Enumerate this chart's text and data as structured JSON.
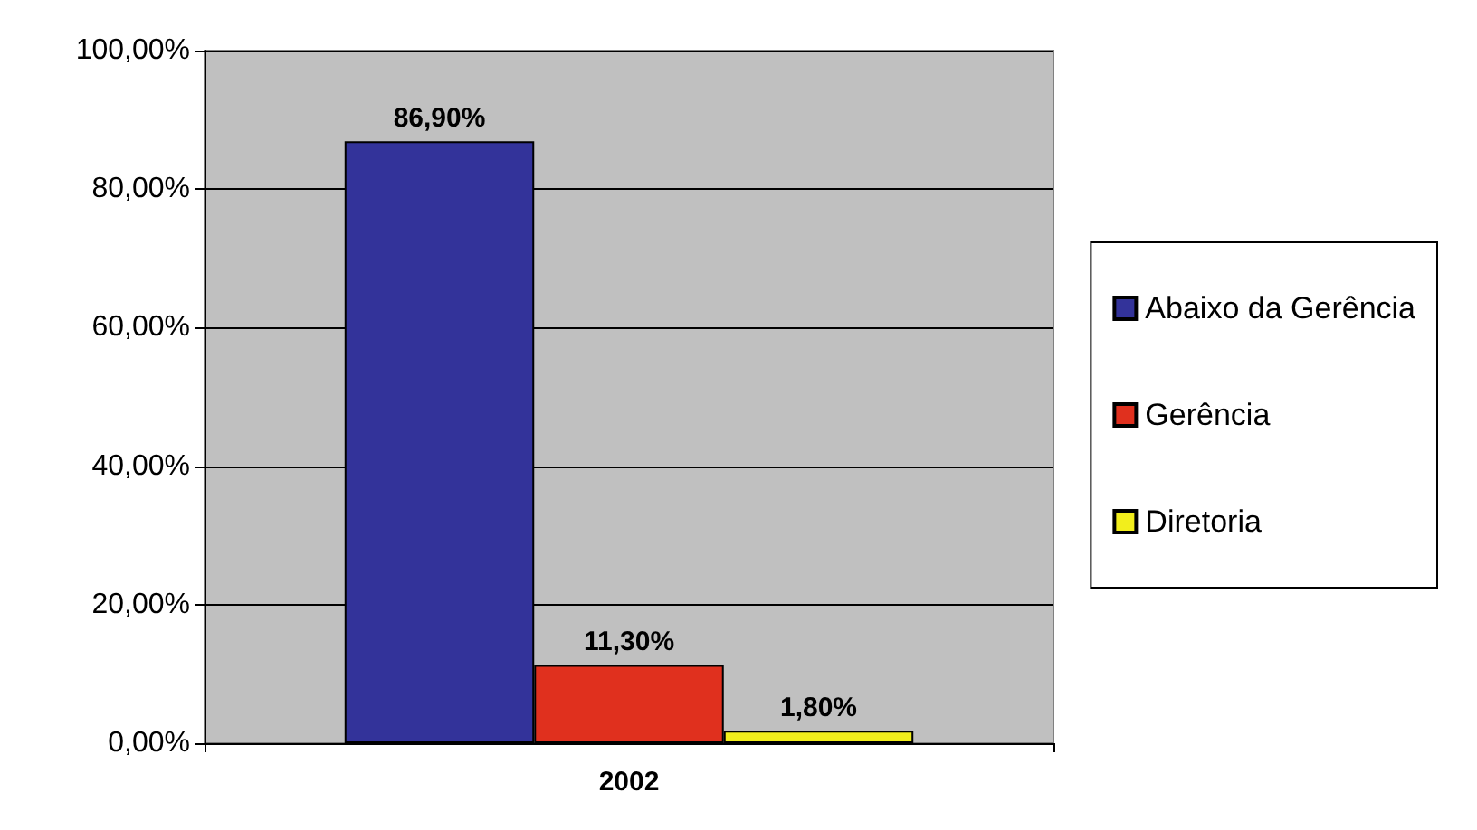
{
  "chart_data": {
    "type": "bar",
    "categories": [
      "2002"
    ],
    "series": [
      {
        "name": "Abaixo da Gerência",
        "color": "#33339a",
        "values": [
          86.9
        ],
        "value_labels": [
          "86,90%"
        ]
      },
      {
        "name": "Gerência",
        "color": "#e0301e",
        "values": [
          11.3
        ],
        "value_labels": [
          "11,30%"
        ]
      },
      {
        "name": "Diretoria",
        "color": "#f2ee1c",
        "values": [
          1.8
        ],
        "value_labels": [
          "1,80%"
        ]
      }
    ],
    "ylim": [
      0,
      100
    ],
    "yticks": [
      {
        "value": 0,
        "label": "0,00%"
      },
      {
        "value": 20,
        "label": "20,00%"
      },
      {
        "value": 40,
        "label": "40,00%"
      },
      {
        "value": 60,
        "label": "60,00%"
      },
      {
        "value": 80,
        "label": "80,00%"
      },
      {
        "value": 100,
        "label": "100,00%"
      }
    ],
    "grid": "y",
    "legend": "right"
  }
}
